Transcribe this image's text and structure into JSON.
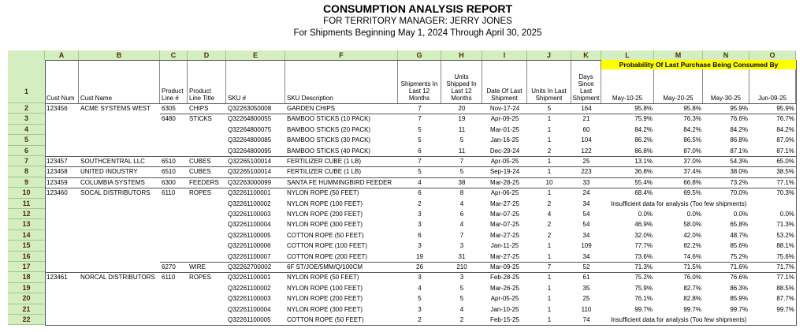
{
  "header": {
    "title": "CONSUMPTION ANALYSIS REPORT",
    "subtitle": "FOR TERRITORY MANAGER: JERRY JONES",
    "date_range": "For Shipments Beginning May 1, 2024 Through April 30, 2025"
  },
  "column_letters": [
    "A",
    "B",
    "C",
    "D",
    "E",
    "F",
    "G",
    "H",
    "I",
    "J",
    "K",
    "L",
    "M",
    "N",
    "O"
  ],
  "table": {
    "group_header": "Probability Of Last Purchase Being Consumed By",
    "header_row_number": 1,
    "columns": [
      "Cust Num",
      "Cust Name",
      "Product Line #",
      "Product Line Title",
      "SKU #",
      "SKU Description",
      "Shipments In Last 12 Months",
      "Units Shipped In Last 12 Months",
      "Date Of Last Shipment",
      "Units In Last Shipment",
      "Days Since Last Shipment",
      "May-10-25",
      "May-20-25",
      "May-30-25",
      "Jun-09-25"
    ],
    "rows": [
      {
        "number": 2,
        "cells": [
          123456,
          "ACME SYSTEMS WEST",
          6305,
          "CHIPS",
          "Q32263050008",
          "GARDEN CHIPS",
          7,
          20,
          "Nov-17-24",
          5,
          164,
          "95.8%",
          "95.8%",
          "95.9%",
          "95.9%"
        ]
      },
      {
        "number": 3,
        "cells": [
          null,
          null,
          6480,
          "STICKS",
          "Q32264800055",
          "BAMBOO STICKS (10 PACK)",
          7,
          19,
          "Apr-09-25",
          1,
          21,
          "75.9%",
          "76.3%",
          "76.6%",
          "76.7%"
        ]
      },
      {
        "number": 4,
        "cells": [
          null,
          null,
          null,
          null,
          "Q32264800075",
          "BAMBOO STICKS (20 PACK)",
          5,
          11,
          "Mar-01-25",
          1,
          60,
          "84.2%",
          "84.2%",
          "84.2%",
          "84.2%"
        ]
      },
      {
        "number": 5,
        "cells": [
          null,
          null,
          null,
          null,
          "Q32264800085",
          "BAMBOO STICKS (30 PACK)",
          5,
          5,
          "Jan-16-25",
          1,
          104,
          "86.2%",
          "86.5%",
          "86.8%",
          "87.0%"
        ]
      },
      {
        "number": 6,
        "cells": [
          null,
          null,
          null,
          null,
          "Q32264800095",
          "BAMBOO STICKS (40 PACK)",
          6,
          11,
          "Dec-29-24",
          2,
          122,
          "86.8%",
          "87.0%",
          "87.1%",
          "87.1%"
        ]
      },
      {
        "number": 7,
        "cells": [
          123457,
          "SOUTHCENTRAL LLC",
          6510,
          "CUBES",
          "Q32265100014",
          "FERTILIZER CUBE (1 LB)",
          7,
          7,
          "Apr-05-25",
          1,
          25,
          "13.1%",
          "37.0%",
          "54.3%",
          "65.0%"
        ]
      },
      {
        "number": 8,
        "cells": [
          123458,
          "UNITED INDUSTRY",
          6510,
          "CUBES",
          "Q32265100014",
          "FERTILIZER CUBE (1 LB)",
          5,
          5,
          "Sep-19-24",
          1,
          223,
          "36.8%",
          "37.4%",
          "38.0%",
          "38.5%"
        ]
      },
      {
        "number": 9,
        "cells": [
          123459,
          "COLUMBIA SYSTEMS",
          6300,
          "FEEDERS",
          "Q32263000099",
          "SANTA FE HUMMINGBIRD FEEDER",
          4,
          38,
          "Mar-28-25",
          10,
          33,
          "55.4%",
          "66.8%",
          "73.2%",
          "77.1%"
        ]
      },
      {
        "number": 10,
        "cells": [
          123460,
          "SOCAL DISTRIBUTORS",
          6110,
          "ROPES",
          "Q32261100001",
          "NYLON ROPE (50 FEET)",
          6,
          8,
          "Apr-06-25",
          1,
          24,
          "68.4%",
          "69.5%",
          "70.0%",
          "70.3%"
        ]
      },
      {
        "number": 11,
        "cells": [
          null,
          null,
          null,
          null,
          "Q32261100002",
          "NYLON ROPE (100 FEET)",
          2,
          4,
          "Mar-27-25",
          2,
          34
        ],
        "note": "Insufficient data for analysis (Too few shipments)"
      },
      {
        "number": 12,
        "cells": [
          null,
          null,
          null,
          null,
          "Q32261100003",
          "NYLON ROPE (200 FEET)",
          3,
          6,
          "Mar-07-25",
          4,
          54,
          "0.0%",
          "0.0%",
          "0.0%",
          "0.0%"
        ]
      },
      {
        "number": 13,
        "cells": [
          null,
          null,
          null,
          null,
          "Q32261100004",
          "NYLON ROPE (300 FEET)",
          3,
          4,
          "Mar-07-25",
          2,
          54,
          "46.9%",
          "58.0%",
          "65.8%",
          "71.3%"
        ]
      },
      {
        "number": 14,
        "cells": [
          null,
          null,
          null,
          null,
          "Q32261100005",
          "COTTON ROPE (50 FEET)",
          6,
          7,
          "Mar-27-25",
          2,
          34,
          "32.0%",
          "42.0%",
          "48.7%",
          "53.2%"
        ]
      },
      {
        "number": 15,
        "cells": [
          null,
          null,
          null,
          null,
          "Q32261100006",
          "COTTON ROPE (100 FEET)",
          3,
          3,
          "Jan-11-25",
          1,
          109,
          "77.7%",
          "82.2%",
          "85.6%",
          "88.1%"
        ]
      },
      {
        "number": 16,
        "cells": [
          null,
          null,
          null,
          null,
          "Q32261100007",
          "COTTON ROPE (200 FEET)",
          19,
          31,
          "Mar-27-25",
          1,
          34,
          "73.6%",
          "74.6%",
          "75.2%",
          "75.6%"
        ]
      },
      {
        "number": 17,
        "cells": [
          null,
          null,
          6270,
          "WIRE",
          "Q32262700002",
          "6F ST/JOE/5MM/Q/100CM",
          26,
          210,
          "Mar-09-25",
          7,
          52,
          "71.3%",
          "71.5%",
          "71.6%",
          "71.7%"
        ]
      },
      {
        "number": 18,
        "cells": [
          123461,
          "NORCAL DISTRIBUTORS",
          6110,
          "ROPES",
          "Q32261100001",
          "NYLON ROPE (50 FEET)",
          3,
          3,
          "Feb-28-25",
          1,
          61,
          "75.2%",
          "76.0%",
          "76.6%",
          "77.1%"
        ]
      },
      {
        "number": 19,
        "cells": [
          null,
          null,
          null,
          null,
          "Q32261100002",
          "NYLON ROPE (100 FEET)",
          4,
          5,
          "Mar-26-25",
          1,
          35,
          "75.9%",
          "82.7%",
          "86.3%",
          "88.5%"
        ]
      },
      {
        "number": 20,
        "cells": [
          null,
          null,
          null,
          null,
          "Q32261100003",
          "NYLON ROPE (200 FEET)",
          5,
          5,
          "Apr-05-25",
          1,
          25,
          "76.1%",
          "82.8%",
          "85.9%",
          "87.7%"
        ]
      },
      {
        "number": 21,
        "cells": [
          null,
          null,
          null,
          null,
          "Q32261100004",
          "NYLON ROPE (300 FEET)",
          3,
          4,
          "Jan-10-25",
          1,
          110,
          "99.7%",
          "99.7%",
          "99.7%",
          "99.7%"
        ]
      },
      {
        "number": 22,
        "cells": [
          null,
          null,
          null,
          null,
          "Q32261100005",
          "COTTON ROPE (50 FEET)",
          2,
          2,
          "Feb-15-25",
          1,
          74
        ],
        "note": "Insufficient data for analysis (Too few shipments)"
      }
    ]
  }
}
